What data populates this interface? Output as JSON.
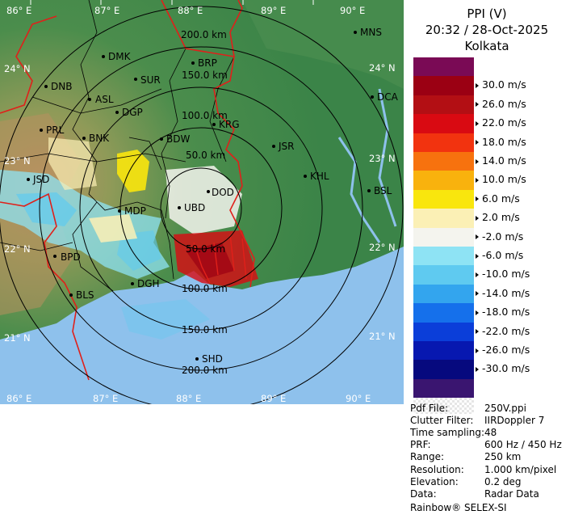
{
  "header": {
    "product": "PPI (V)",
    "datetime": "20:32 / 28-Oct-2025",
    "station": "Kolkata"
  },
  "legend": {
    "unit": "m/s",
    "bins": [
      {
        "color": "#7a0a55",
        "label": ""
      },
      {
        "color": "#9b0013",
        "label": "30.0 m/s"
      },
      {
        "color": "#b30f14",
        "label": "26.0 m/s"
      },
      {
        "color": "#d90a12",
        "label": "22.0 m/s"
      },
      {
        "color": "#f2330f",
        "label": "18.0 m/s"
      },
      {
        "color": "#f7720e",
        "label": "14.0 m/s"
      },
      {
        "color": "#f9b20d",
        "label": "10.0 m/s"
      },
      {
        "color": "#f9e60d",
        "label": "6.0 m/s"
      },
      {
        "color": "#fbf0b5",
        "label": "2.0 m/s"
      },
      {
        "color": "#f4f4ee",
        "label": "-2.0 m/s"
      },
      {
        "color": "#8ee3f4",
        "label": "-6.0 m/s"
      },
      {
        "color": "#5fcaf0",
        "label": "-10.0 m/s"
      },
      {
        "color": "#33a5ee",
        "label": "-14.0 m/s"
      },
      {
        "color": "#1570eb",
        "label": "-18.0 m/s"
      },
      {
        "color": "#0b3ed9",
        "label": "-22.0 m/s"
      },
      {
        "color": "#0718b0",
        "label": "-26.0 m/s"
      },
      {
        "color": "#06097e",
        "label": "-30.0 m/s"
      },
      {
        "color": "#3a1570",
        "label": ""
      }
    ]
  },
  "info": [
    {
      "key": "Pdf File:",
      "value": "250V.ppi"
    },
    {
      "key": "Clutter Filter:",
      "value": "IIRDoppler 7"
    },
    {
      "key": "Time sampling:",
      "value": "48"
    },
    {
      "key": "PRF:",
      "value": "600 Hz / 450 Hz"
    },
    {
      "key": "Range:",
      "value": "250 km"
    },
    {
      "key": "Resolution:",
      "value": "1.000 km/pixel"
    },
    {
      "key": "Elevation:",
      "value": "0.2 deg"
    },
    {
      "key": "Data:",
      "value": "Radar Data"
    }
  ],
  "footer": "Rainbow® SELEX-SI",
  "map": {
    "lon_labels": [
      "86° E",
      "87° E",
      "88° E",
      "89° E",
      "90° E"
    ],
    "lat_labels": [
      "24° N",
      "23° N",
      "22° N",
      "21° N"
    ],
    "range_rings": [
      "50.0 km",
      "100.0 km",
      "150.0 km",
      "200.0 km"
    ],
    "cities": [
      "MNS",
      "DMK",
      "BRP",
      "DNB",
      "SUR",
      "DCA",
      "ASL",
      "DGP",
      "KRG",
      "PRL",
      "BNK",
      "BDW",
      "JSR",
      "KHL",
      "JSD",
      "BSL",
      "DOD",
      "MDP",
      "UBD",
      "BPD",
      "DGH",
      "BLS",
      "SHD"
    ],
    "colors": {
      "land": "#3d8a4a",
      "sea": "#8ec1ec",
      "border": "#e0201a",
      "district": "#000000"
    }
  }
}
